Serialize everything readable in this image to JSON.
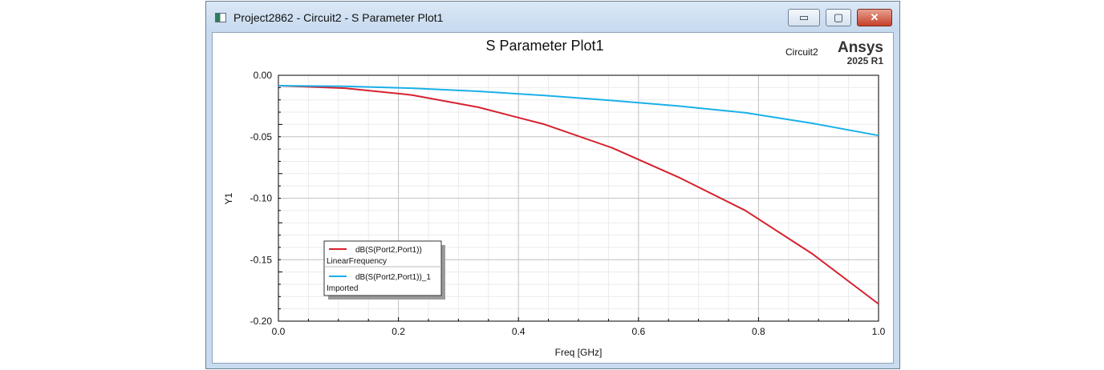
{
  "window": {
    "title": "Project2862 - Circuit2 - S Parameter Plot1",
    "buttons": {
      "minimize": "▭",
      "maximize": "▢",
      "close": "✕"
    }
  },
  "branding": {
    "design": "Circuit2",
    "product": "Ansys",
    "version": "2025 R1"
  },
  "colors": {
    "series1": "#d6212f",
    "series2": "#1ab0e8"
  },
  "chart_data": {
    "type": "line",
    "title": "S Parameter Plot1",
    "xlabel": "Freq [GHz]",
    "ylabel": "Y1",
    "xlim": [
      0,
      1
    ],
    "ylim": [
      -0.2,
      0
    ],
    "grid": true,
    "legend_placement": "lower-left",
    "xticks": [
      "0.0",
      "0.2",
      "0.4",
      "0.6",
      "0.8",
      "1.0"
    ],
    "yticks": [
      "0.00",
      "-0.05",
      "-0.10",
      "-0.15",
      "-0.20"
    ],
    "series": [
      {
        "name": "dB(S(Port2,Port1))",
        "subtitle": "LinearFrequency",
        "color": "#d6212f",
        "x": [
          0.0,
          0.111,
          0.222,
          0.333,
          0.444,
          0.556,
          0.667,
          0.778,
          0.889,
          1.0
        ],
        "y": [
          -0.0085,
          -0.0105,
          -0.016,
          -0.026,
          -0.04,
          -0.059,
          -0.083,
          -0.11,
          -0.145,
          -0.186
        ]
      },
      {
        "name": "dB(S(Port2,Port1))_1",
        "subtitle": "Imported",
        "color": "#1ab0e8",
        "x": [
          0.0,
          0.111,
          0.222,
          0.333,
          0.444,
          0.556,
          0.667,
          0.778,
          0.889,
          1.0
        ],
        "y": [
          -0.0085,
          -0.009,
          -0.0105,
          -0.013,
          -0.0165,
          -0.0205,
          -0.025,
          -0.0305,
          -0.039,
          -0.049
        ]
      }
    ]
  }
}
